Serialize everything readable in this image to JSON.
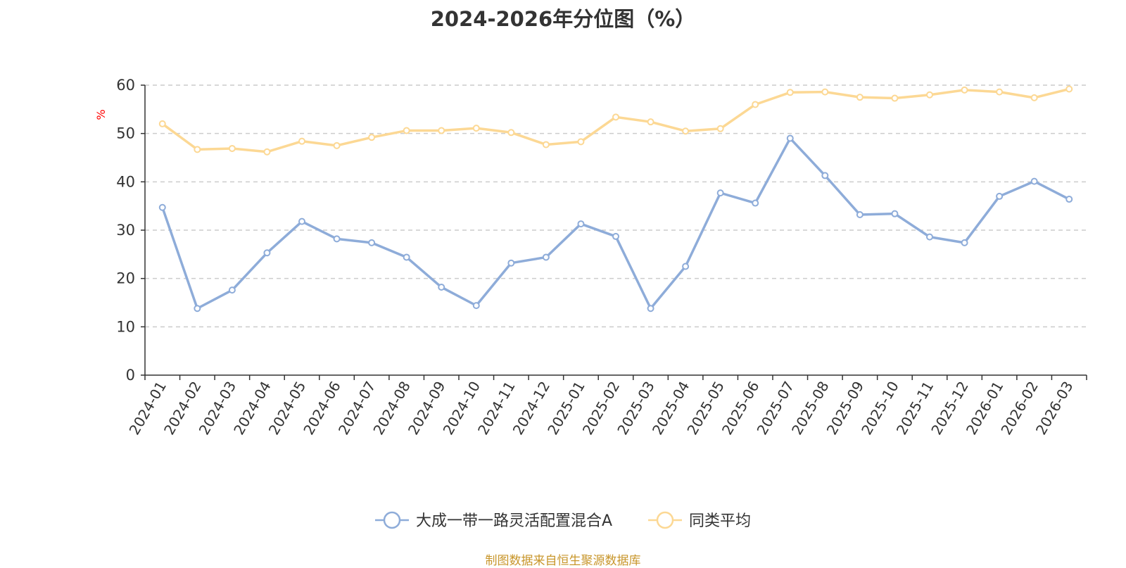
{
  "chart_data": {
    "type": "line",
    "title": "2024-2026年分位图（%）",
    "ylabel": "%",
    "xlabel": "",
    "ylim": [
      0,
      60
    ],
    "yticks": [
      0,
      10,
      20,
      30,
      40,
      50,
      60
    ],
    "grid": true,
    "legend_position": "bottom",
    "categories": [
      "2024-01",
      "2024-02",
      "2024-03",
      "2024-04",
      "2024-05",
      "2024-06",
      "2024-07",
      "2024-08",
      "2024-09",
      "2024-10",
      "2024-11",
      "2024-12",
      "2025-01",
      "2025-02",
      "2025-03",
      "2025-04",
      "2025-05",
      "2025-06",
      "2025-07",
      "2025-08",
      "2025-09",
      "2025-10",
      "2025-11",
      "2025-12",
      "2026-01",
      "2026-02",
      "2026-03"
    ],
    "series": [
      {
        "name": "大成一带一路灵活配置混合A",
        "color": "#8eacd9",
        "values": [
          34.7,
          13.8,
          17.6,
          25.3,
          31.8,
          28.2,
          27.4,
          24.4,
          18.2,
          14.4,
          23.2,
          24.4,
          31.3,
          28.7,
          13.8,
          22.5,
          37.7,
          35.6,
          49.0,
          41.3,
          33.2,
          33.4,
          28.6,
          27.4,
          37.0,
          40.1,
          36.4
        ]
      },
      {
        "name": "同类平均",
        "color": "#fcd894",
        "values": [
          52.0,
          46.7,
          46.9,
          46.2,
          48.4,
          47.5,
          49.2,
          50.6,
          50.6,
          51.1,
          50.2,
          47.7,
          48.3,
          53.4,
          52.4,
          50.5,
          51.0,
          56.0,
          58.5,
          58.6,
          57.5,
          57.3,
          58.0,
          59.0,
          58.6,
          57.4,
          59.2
        ]
      }
    ],
    "source_note": "制图数据来自恒生聚源数据库"
  }
}
